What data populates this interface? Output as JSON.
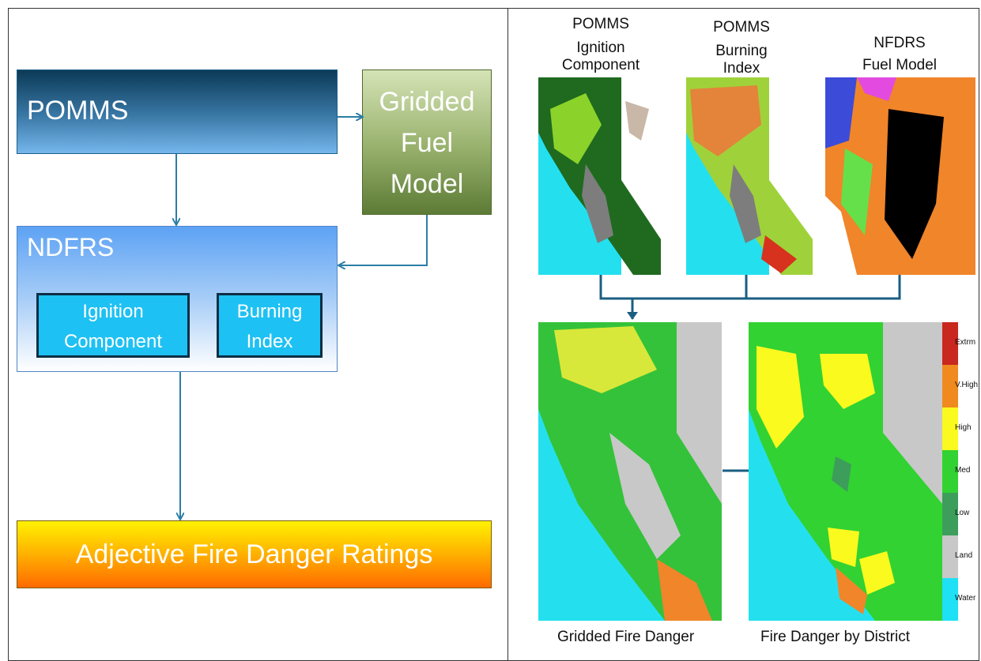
{
  "flow": {
    "pomms": "POMMS",
    "gridded_fuel": [
      "Gridded",
      "Fuel",
      "Model"
    ],
    "ndfrs": "NDFRS",
    "ignition": [
      "Ignition",
      "Component"
    ],
    "burning": [
      "Burning",
      "Index"
    ],
    "adjective": "Adjective Fire Danger Ratings"
  },
  "maps": {
    "top": [
      {
        "lines": [
          "POMMS",
          "Ignition",
          "Component"
        ]
      },
      {
        "lines": [
          "POMMS",
          "Burning",
          "Index"
        ]
      },
      {
        "lines": [
          "NFDRS",
          "Fuel Model"
        ]
      }
    ],
    "bottom_captions": [
      "Gridded Fire Danger",
      "Fire Danger by District"
    ]
  },
  "legend": [
    {
      "label": "Extrm",
      "color": "#c8281e"
    },
    {
      "label": "V.High",
      "color": "#f08a1e"
    },
    {
      "label": "High",
      "color": "#fafa1e"
    },
    {
      "label": "Med",
      "color": "#32d232"
    },
    {
      "label": "Low",
      "color": "#3c9e5a"
    },
    {
      "label": "Land",
      "color": "#c8c8c8"
    },
    {
      "label": "Water",
      "color": "#1ee1f5"
    }
  ],
  "colors": {
    "arrow": "#2a7ea6",
    "connector": "#1b5e80"
  }
}
